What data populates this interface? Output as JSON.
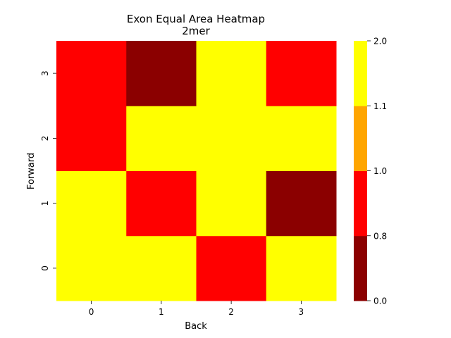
{
  "chart_data": {
    "type": "heatmap",
    "title": "Exon Equal Area Heatmap",
    "subtitle": "2mer",
    "xlabel": "Back",
    "ylabel": "Forward",
    "x_categories": [
      "0",
      "1",
      "2",
      "3"
    ],
    "y_categories": [
      "0",
      "1",
      "2",
      "3"
    ],
    "values": [
      [
        2.0,
        1.1,
        0.8,
        1.1
      ],
      [
        1.1,
        0.8,
        1.1,
        0.0
      ],
      [
        0.8,
        1.1,
        2.0,
        1.1
      ],
      [
        0.8,
        0.0,
        1.1,
        0.8
      ]
    ],
    "colorbar": {
      "bins": [
        {
          "from": 0.0,
          "to": 0.8,
          "color": "#8b0000"
        },
        {
          "from": 0.8,
          "to": 1.0,
          "color": "#ff0000"
        },
        {
          "from": 1.0,
          "to": 1.1,
          "color": "#ffa500"
        },
        {
          "from": 1.1,
          "to": 2.0,
          "color": "#ffff00"
        }
      ],
      "tick_labels": [
        "0.0",
        "0.8",
        "1.0",
        "1.1",
        "2.0"
      ]
    },
    "grid": false
  }
}
